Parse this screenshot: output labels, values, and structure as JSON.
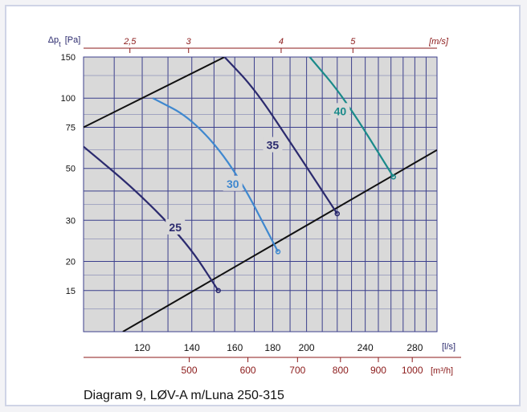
{
  "chart_data": {
    "type": "line",
    "title": "",
    "caption": "Diagram 9, LØV-A m/Luna 250-315",
    "ylabel": "Δp",
    "ylabel_sub": "t",
    "ylabel_unit": "[Pa]",
    "y_scale": "log",
    "ylim": [
      10,
      150
    ],
    "y_ticks": [
      15,
      20,
      30,
      50,
      75,
      100,
      150
    ],
    "x_scale": "log",
    "xlim": [
      100,
      300
    ],
    "x_ticks_ls": [
      120,
      140,
      160,
      180,
      200,
      240,
      280
    ],
    "x_unit_ls": "[l/s]",
    "x_ticks_m3h": [
      500,
      600,
      700,
      800,
      900,
      1000
    ],
    "x_unit_m3h": "[m³/h]",
    "top_ticks_ms": [
      "2,5",
      "3",
      "4",
      "5"
    ],
    "top_tick_positions_ms": [
      2.5,
      3,
      4,
      5
    ],
    "top_unit_ms": "[m/s]",
    "limit_lines": [
      {
        "points": [
          [
            100,
            75
          ],
          [
            155,
            150
          ]
        ]
      },
      {
        "points": [
          [
            113,
            10
          ],
          [
            300,
            60
          ]
        ]
      }
    ],
    "series": [
      {
        "name": "25",
        "color": "#2b2a6e",
        "points": [
          [
            100,
            62
          ],
          [
            118,
            40
          ],
          [
            138,
            24
          ],
          [
            152,
            15
          ]
        ],
        "label_at": [
          133,
          28
        ]
      },
      {
        "name": "30",
        "color": "#3f88cf",
        "points": [
          [
            124,
            100
          ],
          [
            140,
            82
          ],
          [
            160,
            50
          ],
          [
            183,
            22
          ]
        ],
        "label_at": [
          159,
          43
        ]
      },
      {
        "name": "35",
        "color": "#2b2a6e",
        "points": [
          [
            155,
            150
          ],
          [
            170,
            110
          ],
          [
            190,
            65
          ],
          [
            220,
            32
          ]
        ],
        "label_at": [
          180,
          63
        ]
      },
      {
        "name": "40",
        "color": "#1a8a8a",
        "points": [
          [
            202,
            150
          ],
          [
            225,
            100
          ],
          [
            262,
            46
          ]
        ],
        "label_at": [
          222,
          88
        ]
      }
    ],
    "grid": true
  }
}
